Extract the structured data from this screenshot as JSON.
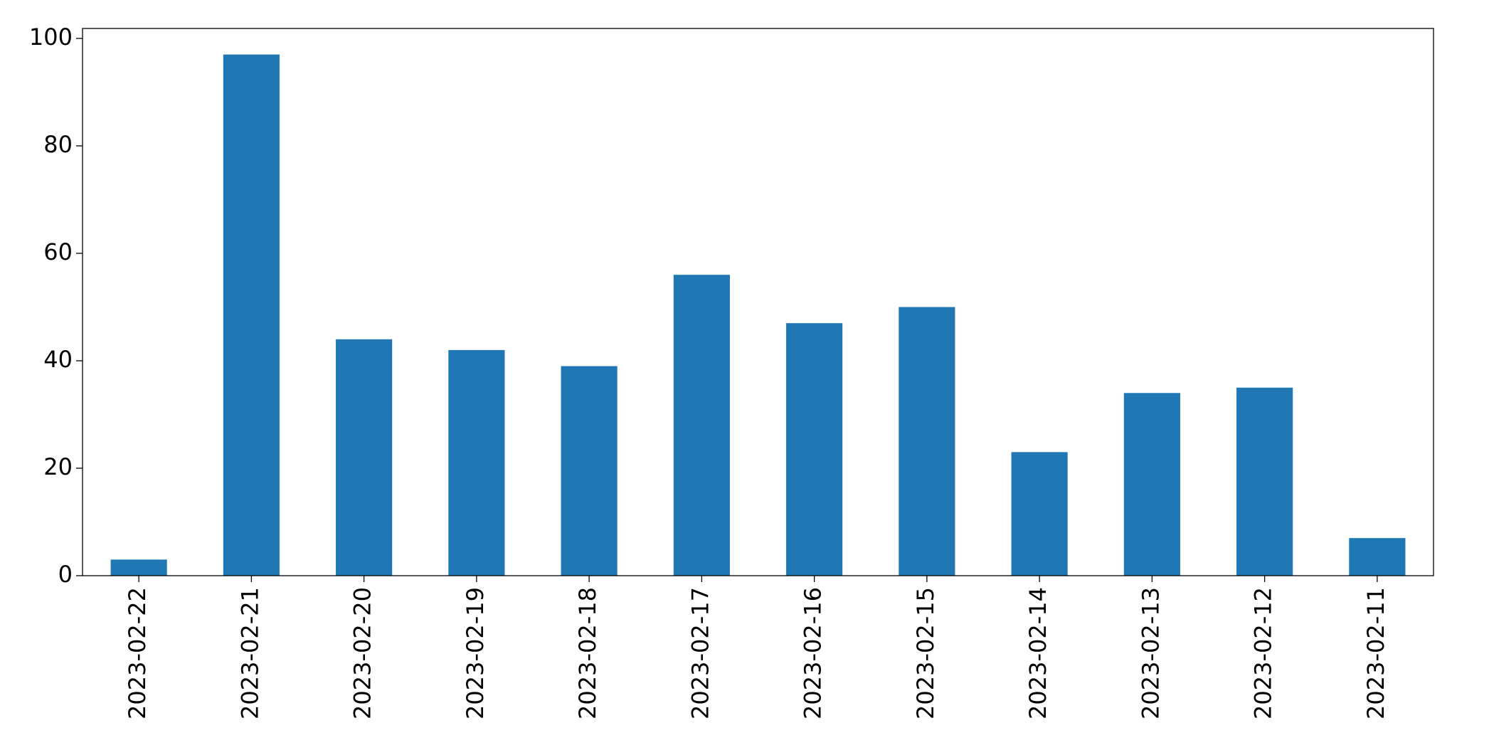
{
  "chart_data": {
    "type": "bar",
    "categories": [
      "2023-02-22",
      "2023-02-21",
      "2023-02-20",
      "2023-02-19",
      "2023-02-18",
      "2023-02-17",
      "2023-02-16",
      "2023-02-15",
      "2023-02-14",
      "2023-02-13",
      "2023-02-12",
      "2023-02-11"
    ],
    "values": [
      3,
      97,
      44,
      42,
      39,
      56,
      47,
      50,
      23,
      34,
      35,
      7
    ],
    "color": "#1f77b4",
    "ylim": [
      0,
      101.85
    ],
    "yticks": [
      0,
      20,
      40,
      60,
      80,
      100
    ],
    "grid": false
  }
}
